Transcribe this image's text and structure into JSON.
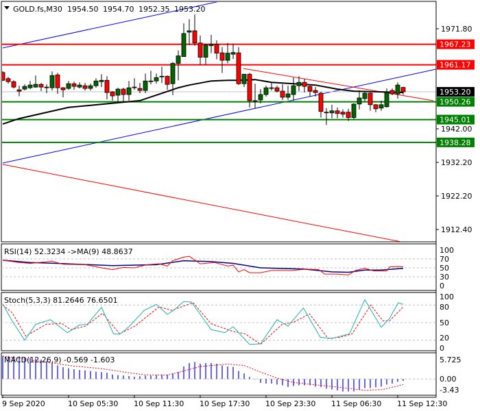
{
  "header": {
    "symbol": "GOLD.fs,M30",
    "open": "1954.50",
    "high": "1954.70",
    "low": "1952.35",
    "close": "1953.20"
  },
  "colors": {
    "bull": "#006400",
    "bear": "#ff0000",
    "ma": "#000000",
    "trend_blue": "#0000ff",
    "trend_red": "#ff0000",
    "support": "#008000",
    "resistance": "#ff0000"
  },
  "price_axis": [
    "1971.80",
    "1942.00",
    "1932.20",
    "1922.20",
    "1912.40"
  ],
  "levels": [
    {
      "price": 1967.23,
      "label": "1967.23",
      "kind": "resistance"
    },
    {
      "price": 1961.17,
      "label": "1961.17",
      "kind": "resistance"
    },
    {
      "price": 1950.26,
      "label": "1950.26",
      "kind": "support"
    },
    {
      "price": 1945.01,
      "label": "1945.01",
      "kind": "support"
    },
    {
      "price": 1938.28,
      "label": "1938.28",
      "kind": "support"
    }
  ],
  "current_price": {
    "price": 1953.2,
    "label": "1953.20"
  },
  "candles": [
    [
      1958.9,
      1959.3,
      1956.4,
      1956.6
    ],
    [
      1957.1,
      1957.6,
      1955.6,
      1956.2
    ],
    [
      1956.2,
      1956.6,
      1954.2,
      1954.6
    ],
    [
      1953.8,
      1955.0,
      1951.9,
      1953.4
    ],
    [
      1954.0,
      1955.4,
      1953.6,
      1954.8
    ],
    [
      1954.4,
      1956.4,
      1954.0,
      1955.2
    ],
    [
      1954.6,
      1958.0,
      1954.4,
      1955.4
    ],
    [
      1955.4,
      1955.8,
      1953.4,
      1954.6
    ],
    [
      1954.6,
      1955.4,
      1952.8,
      1954.4
    ],
    [
      1954.4,
      1959.2,
      1953.6,
      1958.0
    ],
    [
      1958.2,
      1958.8,
      1952.6,
      1954.4
    ],
    [
      1954.4,
      1954.6,
      1951.6,
      1953.8
    ],
    [
      1954.2,
      1956.4,
      1953.8,
      1955.6
    ],
    [
      1955.6,
      1956.2,
      1953.8,
      1954.8
    ],
    [
      1954.6,
      1956.0,
      1954.2,
      1955.2
    ],
    [
      1955.0,
      1955.8,
      1953.6,
      1954.2
    ],
    [
      1954.2,
      1955.6,
      1953.6,
      1955.0
    ],
    [
      1955.0,
      1957.2,
      1954.4,
      1956.4
    ],
    [
      1956.2,
      1958.4,
      1954.6,
      1956.6
    ],
    [
      1956.6,
      1957.8,
      1951.0,
      1953.0
    ],
    [
      1953.2,
      1953.4,
      1950.6,
      1952.0
    ],
    [
      1952.2,
      1954.4,
      1950.2,
      1954.0
    ],
    [
      1954.0,
      1954.4,
      1950.2,
      1952.4
    ],
    [
      1952.4,
      1956.4,
      1950.6,
      1954.4
    ],
    [
      1954.6,
      1957.2,
      1953.8,
      1954.5
    ],
    [
      1954.2,
      1955.8,
      1952.8,
      1953.6
    ],
    [
      1953.6,
      1958.6,
      1952.8,
      1956.4
    ],
    [
      1956.4,
      1959.4,
      1955.4,
      1956.3
    ],
    [
      1956.4,
      1958.6,
      1955.6,
      1957.4
    ],
    [
      1957.6,
      1960.6,
      1955.8,
      1957.8
    ],
    [
      1957.8,
      1958.0,
      1953.8,
      1955.4
    ],
    [
      1955.6,
      1962.0,
      1952.2,
      1961.6
    ],
    [
      1961.6,
      1965.4,
      1956.6,
      1963.8
    ],
    [
      1963.6,
      1973.4,
      1963.6,
      1970.4
    ],
    [
      1970.8,
      1974.6,
      1967.0,
      1971.2
    ],
    [
      1971.2,
      1976.0,
      1966.8,
      1967.6
    ],
    [
      1967.6,
      1969.8,
      1961.2,
      1963.4
    ],
    [
      1963.4,
      1967.4,
      1961.2,
      1967.0
    ],
    [
      1966.8,
      1970.0,
      1964.6,
      1967.2
    ],
    [
      1967.2,
      1968.4,
      1962.8,
      1964.6
    ],
    [
      1964.7,
      1966.4,
      1958.8,
      1962.5
    ],
    [
      1962.5,
      1967.6,
      1961.6,
      1964.6
    ],
    [
      1964.3,
      1967.4,
      1962.9,
      1964.8
    ],
    [
      1964.7,
      1966.4,
      1955.2,
      1955.6
    ],
    [
      1955.6,
      1958.4,
      1954.6,
      1958.4
    ],
    [
      1958.4,
      1958.8,
      1948.6,
      1950.6
    ],
    [
      1950.6,
      1955.6,
      1948.4,
      1950.5
    ],
    [
      1950.8,
      1954.0,
      1949.8,
      1952.4
    ],
    [
      1952.4,
      1955.0,
      1951.8,
      1954.4
    ],
    [
      1954.4,
      1956.0,
      1953.6,
      1954.3
    ],
    [
      1954.4,
      1955.0,
      1953.0,
      1953.4
    ],
    [
      1953.4,
      1955.4,
      1950.8,
      1951.6
    ],
    [
      1951.6,
      1955.0,
      1950.8,
      1952.6
    ],
    [
      1952.4,
      1957.4,
      1950.6,
      1955.0
    ],
    [
      1955.0,
      1957.8,
      1953.4,
      1956.0
    ],
    [
      1956.0,
      1957.0,
      1953.0,
      1954.8
    ],
    [
      1954.8,
      1955.0,
      1951.8,
      1953.4
    ],
    [
      1953.6,
      1954.6,
      1951.8,
      1953.0
    ],
    [
      1952.8,
      1953.2,
      1945.6,
      1947.4
    ],
    [
      1947.2,
      1948.4,
      1943.4,
      1947.1
    ],
    [
      1947.0,
      1949.4,
      1945.4,
      1947.6
    ],
    [
      1947.6,
      1948.6,
      1945.4,
      1946.8
    ],
    [
      1947.2,
      1948.0,
      1945.6,
      1946.6
    ],
    [
      1947.2,
      1948.2,
      1944.6,
      1945.6
    ],
    [
      1945.6,
      1949.8,
      1945.2,
      1949.6
    ],
    [
      1949.6,
      1953.6,
      1948.0,
      1951.4
    ],
    [
      1951.2,
      1953.4,
      1950.4,
      1952.8
    ],
    [
      1952.8,
      1953.0,
      1947.6,
      1949.4
    ],
    [
      1949.4,
      1949.6,
      1947.2,
      1948.2
    ],
    [
      1948.4,
      1950.6,
      1947.6,
      1949.4
    ],
    [
      1948.8,
      1954.2,
      1948.6,
      1953.0
    ],
    [
      1953.6,
      1954.2,
      1952.2,
      1952.6
    ],
    [
      1952.6,
      1956.0,
      1951.2,
      1955.2
    ],
    [
      1954.5,
      1954.7,
      1952.35,
      1953.2
    ]
  ],
  "moving_average": [
    [
      0,
      1943.7
    ],
    [
      3,
      1945.3
    ],
    [
      12,
      1948.6
    ],
    [
      25,
      1950.6
    ],
    [
      32,
      1954.4
    ],
    [
      34,
      1955.2
    ],
    [
      38,
      1956.4
    ],
    [
      41,
      1956.6
    ],
    [
      43,
      1956.6
    ],
    [
      46,
      1956.8
    ],
    [
      49,
      1956.0
    ],
    [
      53,
      1955.6
    ],
    [
      57,
      1955.2
    ],
    [
      61,
      1954.0
    ],
    [
      64,
      1953.4
    ],
    [
      69,
      1953.2
    ],
    [
      73,
      1953.0
    ]
  ],
  "rsi": {
    "label": "RSI(14) 52.3234  ->MA(9) 48.8637",
    "axis": [
      "100",
      "70",
      "50",
      "30",
      "0"
    ],
    "levels": [
      70,
      50,
      30
    ],
    "rsi": [
      [
        0,
        67
      ],
      [
        3,
        62
      ],
      [
        5,
        60
      ],
      [
        9,
        65
      ],
      [
        11,
        58
      ],
      [
        15,
        57
      ],
      [
        18.5,
        49
      ],
      [
        20,
        46
      ],
      [
        22,
        51
      ],
      [
        24,
        50
      ],
      [
        26.3,
        57
      ],
      [
        28.5,
        59
      ],
      [
        30,
        54
      ],
      [
        31,
        66
      ],
      [
        33,
        74
      ],
      [
        34,
        76
      ],
      [
        36,
        59
      ],
      [
        38.6,
        62
      ],
      [
        41,
        54
      ],
      [
        42,
        56
      ],
      [
        43,
        41
      ],
      [
        44,
        46
      ],
      [
        45,
        39
      ],
      [
        47,
        39
      ],
      [
        49,
        44
      ],
      [
        52.6,
        44
      ],
      [
        55.4,
        47
      ],
      [
        57.6,
        46
      ],
      [
        58.7,
        36
      ],
      [
        61,
        36
      ],
      [
        63,
        34
      ],
      [
        64.3,
        44
      ],
      [
        66,
        49
      ],
      [
        67.7,
        43
      ],
      [
        70,
        43
      ],
      [
        70.5,
        52
      ],
      [
        72,
        53
      ],
      [
        73,
        52.3
      ]
    ],
    "ma": [
      [
        0,
        67
      ],
      [
        5,
        62
      ],
      [
        10,
        60
      ],
      [
        20,
        55
      ],
      [
        28,
        57
      ],
      [
        33,
        66
      ],
      [
        38,
        64
      ],
      [
        42,
        60
      ],
      [
        47,
        50
      ],
      [
        55,
        47
      ],
      [
        60,
        41
      ],
      [
        63,
        40
      ],
      [
        66,
        45
      ],
      [
        69,
        45
      ],
      [
        73,
        48.9
      ]
    ]
  },
  "stoch": {
    "label": "Stoch(5,3,3) 81.2646 76.6501",
    "axis": [
      "100",
      "80",
      "50",
      "20",
      "0"
    ],
    "levels": [
      80,
      50,
      20
    ],
    "main": [
      [
        0,
        82
      ],
      [
        1.7,
        53
      ],
      [
        4,
        20
      ],
      [
        6,
        47
      ],
      [
        7,
        50
      ],
      [
        8.7,
        55
      ],
      [
        11.8,
        33
      ],
      [
        14,
        46
      ],
      [
        15.4,
        47
      ],
      [
        18,
        76
      ],
      [
        20.2,
        31
      ],
      [
        21.3,
        30
      ],
      [
        23,
        43
      ],
      [
        25.8,
        71
      ],
      [
        28,
        81
      ],
      [
        30,
        64
      ],
      [
        31.3,
        72
      ],
      [
        33,
        86
      ],
      [
        34.4,
        85
      ],
      [
        38,
        38
      ],
      [
        40.5,
        33
      ],
      [
        42,
        43
      ],
      [
        45,
        13
      ],
      [
        47,
        14
      ],
      [
        50,
        55
      ],
      [
        52,
        44
      ],
      [
        54.8,
        75
      ],
      [
        57.9,
        25
      ],
      [
        60,
        23
      ],
      [
        63.2,
        31
      ],
      [
        66,
        89
      ],
      [
        69,
        42
      ],
      [
        70.5,
        57
      ],
      [
        72.1,
        84
      ],
      [
        73,
        81.3
      ]
    ],
    "signal": [
      [
        0,
        80
      ],
      [
        1.7,
        67
      ],
      [
        4.2,
        27
      ],
      [
        7.9,
        47
      ],
      [
        10.7,
        49
      ],
      [
        12.4,
        38
      ],
      [
        15.1,
        44
      ],
      [
        18.2,
        66
      ],
      [
        21.3,
        31
      ],
      [
        24.1,
        44
      ],
      [
        28.5,
        77
      ],
      [
        30.8,
        71
      ],
      [
        34.7,
        84
      ],
      [
        38,
        48
      ],
      [
        42,
        35
      ],
      [
        44.2,
        31
      ],
      [
        47,
        13
      ],
      [
        50.9,
        47
      ],
      [
        53.1,
        51
      ],
      [
        55.9,
        65
      ],
      [
        59.3,
        23
      ],
      [
        61.5,
        25
      ],
      [
        63.7,
        31
      ],
      [
        67.1,
        80
      ],
      [
        69.3,
        53
      ],
      [
        70.5,
        53
      ],
      [
        73,
        76.7
      ]
    ]
  },
  "macd": {
    "label": "MACD(12,26,9) -0.569 -1.603",
    "axis": [
      "5.725",
      "0.00",
      "-3.43"
    ],
    "histogram": [
      6.6,
      6.6,
      6.6,
      6.5,
      6.3,
      6.1,
      5.9,
      5.6,
      5.2,
      4.6,
      3.9,
      3.4,
      3.1,
      2.8,
      2.6,
      2.5,
      2.3,
      2.1,
      2.0,
      1.8,
      1.3,
      1.1,
      1.0,
      0.85,
      0.65,
      0.8,
      1.0,
      1.0,
      1.2,
      1.3,
      1.3,
      1.6,
      2.0,
      3.6,
      4.6,
      4.9,
      4.4,
      4.6,
      4.6,
      4.4,
      3.9,
      3.6,
      3.5,
      2.3,
      1.6,
      0.6,
      -0.1,
      -1.1,
      -1.3,
      -1.3,
      -1.6,
      -1.8,
      -2.3,
      -2.0,
      -1.8,
      -1.8,
      -1.8,
      -2.2,
      -2.3,
      -2.8,
      -3.0,
      -3.3,
      -3.6,
      -3.6,
      -3.6,
      -3.0,
      -2.6,
      -2.6,
      -2.4,
      -2.2,
      -1.6,
      -1.3,
      -0.8,
      -0.569
    ],
    "signal": [
      [
        0,
        6.6
      ],
      [
        13,
        3.7
      ],
      [
        18,
        3.0
      ],
      [
        23,
        1.8
      ],
      [
        26,
        1.2
      ],
      [
        30,
        1.1
      ],
      [
        33,
        2.3
      ],
      [
        36,
        3.6
      ],
      [
        41,
        4.3
      ],
      [
        44,
        3.9
      ],
      [
        47,
        2.0
      ],
      [
        50,
        0.3
      ],
      [
        53,
        -1.0
      ],
      [
        56.5,
        -1.6
      ],
      [
        61,
        -2.3
      ],
      [
        66,
        -3.3
      ],
      [
        69.3,
        -3.0
      ],
      [
        73,
        -1.603
      ]
    ]
  },
  "time_axis": [
    "9 Sep 2020",
    "10 Sep 05:30",
    "10 Sep 11:30",
    "10 Sep 17:30",
    "10 Sep 23:30",
    "11 Sep 06:30",
    "11 Sep 12:30"
  ]
}
